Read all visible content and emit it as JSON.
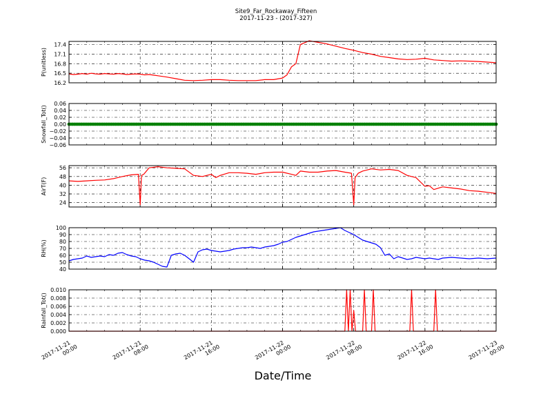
{
  "figure": {
    "title": "Site9_Far_Rockaway_Fifteen",
    "subtitle": "2017-11-23 - (2017-327)",
    "xlabel": "Date/Time"
  },
  "chart_data": [
    {
      "type": "line",
      "ylabel": "P(unitless)",
      "ylim": [
        16.2,
        17.5
      ],
      "yticks": [
        "16.2",
        "16.5",
        "16.8",
        "17.1",
        "17.4"
      ],
      "color": "#ff0000",
      "x_hours": [
        0,
        0.5,
        1,
        1.5,
        2,
        2.5,
        3,
        3.5,
        4,
        4.5,
        5,
        5.5,
        6,
        6.5,
        7,
        7.5,
        8,
        8.5,
        9,
        9.5,
        10,
        11,
        12,
        13,
        14,
        15,
        16,
        17,
        18,
        19,
        20,
        21,
        22,
        23,
        24,
        24.5,
        25,
        25.5,
        26,
        27,
        28,
        29,
        30,
        31,
        32,
        33,
        34,
        35,
        36,
        37,
        38,
        39,
        40,
        41,
        42,
        43,
        44,
        45,
        46,
        47,
        48
      ],
      "values": [
        16.48,
        16.46,
        16.47,
        16.49,
        16.47,
        16.5,
        16.48,
        16.47,
        16.49,
        16.48,
        16.47,
        16.49,
        16.48,
        16.46,
        16.47,
        16.48,
        16.47,
        16.45,
        16.46,
        16.44,
        16.42,
        16.38,
        16.33,
        16.28,
        16.27,
        16.28,
        16.3,
        16.3,
        16.28,
        16.27,
        16.27,
        16.27,
        16.3,
        16.3,
        16.35,
        16.45,
        16.7,
        16.8,
        17.4,
        17.52,
        17.47,
        17.42,
        17.35,
        17.28,
        17.22,
        17.15,
        17.1,
        17.03,
        16.99,
        16.95,
        16.93,
        16.94,
        16.97,
        16.92,
        16.9,
        16.88,
        16.89,
        16.88,
        16.87,
        16.85,
        16.83
      ]
    },
    {
      "type": "scatter",
      "ylabel": "Snowfall_Tot()",
      "ylim": [
        -0.06,
        0.06
      ],
      "yticks": [
        "−0.06",
        "−0.04",
        "−0.02",
        "0.00",
        "0.02",
        "0.04",
        "0.06"
      ],
      "color": "#008000",
      "x_hours": [
        0,
        48
      ],
      "values": [
        0.0,
        0.0
      ]
    },
    {
      "type": "line",
      "ylabel": "AirT(F)",
      "ylim": [
        20,
        58
      ],
      "yticks": [
        "24",
        "32",
        "40",
        "48",
        "56"
      ],
      "color": "#ff0000",
      "x_hours": [
        0,
        1,
        2,
        3,
        4,
        5,
        6,
        7,
        7.8,
        8.0,
        8.15,
        8.4,
        9,
        10,
        11,
        12,
        13,
        14,
        15,
        16,
        16.5,
        17,
        18,
        19,
        20,
        21,
        22,
        23,
        24,
        25,
        25.5,
        26,
        27,
        28,
        29,
        30,
        31,
        31.75,
        32.0,
        32.15,
        32.5,
        33,
        34,
        35,
        36,
        37,
        38,
        39,
        40,
        40.5,
        41,
        42,
        43,
        44,
        45,
        46,
        47,
        48
      ],
      "values": [
        44,
        43.5,
        44,
        44.5,
        44.8,
        46,
        48,
        49.5,
        50,
        22,
        49,
        50,
        56,
        57,
        56,
        55.5,
        55,
        49,
        48,
        50,
        47,
        49,
        51.5,
        51.5,
        51,
        50,
        51.5,
        52,
        52,
        50,
        49,
        53,
        52,
        52,
        53,
        53.5,
        52,
        51,
        22,
        47,
        51,
        53,
        55,
        54,
        54.5,
        53.5,
        49,
        47,
        39,
        39.5,
        36,
        38.5,
        37.5,
        36.5,
        35,
        34.5,
        33.5,
        32.5
      ]
    },
    {
      "type": "line",
      "ylabel": "RH(%)",
      "ylim": [
        40,
        100
      ],
      "yticks": [
        "40",
        "50",
        "60",
        "70",
        "80",
        "90",
        "100"
      ],
      "color": "#0000ff",
      "x_hours": [
        0,
        0.5,
        1,
        1.5,
        2,
        2.5,
        3,
        3.5,
        4,
        4.5,
        5,
        5.5,
        6,
        6.5,
        7,
        7.5,
        8,
        8.5,
        9,
        9.5,
        10,
        10.5,
        11,
        11.5,
        12,
        12.5,
        13,
        13.5,
        14,
        14.5,
        15,
        15.5,
        16,
        16.5,
        17,
        17.5,
        18,
        18.5,
        19,
        19.5,
        20,
        20.5,
        21,
        21.5,
        22,
        22.5,
        23,
        23.5,
        24,
        24.5,
        25,
        25.5,
        26,
        26.5,
        27,
        27.5,
        28,
        28.5,
        29,
        29.5,
        30,
        30.5,
        31,
        31.5,
        32,
        32.5,
        33,
        33.5,
        34,
        34.5,
        35,
        35.5,
        36,
        36.5,
        37,
        37.5,
        38,
        38.5,
        39,
        39.5,
        40,
        40.5,
        41,
        41.5,
        42,
        43,
        44,
        45,
        46,
        47,
        48
      ],
      "values": [
        52,
        54,
        55,
        56,
        59,
        57,
        58,
        59,
        58,
        61,
        60,
        63,
        64,
        61,
        59,
        58,
        55,
        53,
        52,
        50,
        47,
        44,
        43,
        60,
        62,
        63,
        60,
        55,
        50,
        65,
        68,
        69,
        67,
        66,
        65,
        66,
        67,
        69,
        70,
        71,
        71,
        72,
        71,
        70,
        72,
        73,
        74,
        76,
        79,
        80,
        83,
        86,
        88,
        90,
        92,
        94,
        95,
        96,
        97,
        98,
        99,
        100,
        96,
        93,
        90,
        86,
        82,
        80,
        78,
        76,
        71,
        60,
        62,
        55,
        58,
        56,
        54,
        55,
        57,
        56,
        55,
        56,
        55,
        54,
        56,
        57,
        56,
        55,
        56,
        55,
        56
      ],
      "note": ""
    },
    {
      "type": "line",
      "ylabel": "Rainfall_Tot()",
      "ylim": [
        0,
        0.01
      ],
      "yticks": [
        "0.000",
        "0.002",
        "0.004",
        "0.006",
        "0.008",
        "0.010"
      ],
      "color": "#ff0000",
      "x_hours": [
        0,
        31.0,
        31.2,
        31.4,
        31.6,
        31.8,
        32.0,
        32.2,
        32.4,
        32.6,
        33.0,
        33.2,
        33.4,
        34.0,
        34.2,
        34.4,
        38.3,
        38.5,
        38.7,
        41.0,
        41.2,
        41.4,
        48
      ],
      "values": [
        0,
        0,
        0.01,
        0,
        0.01,
        0,
        0.005,
        0,
        0,
        0,
        0,
        0.01,
        0,
        0,
        0.01,
        0,
        0,
        0.01,
        0,
        0,
        0.01,
        0,
        0
      ]
    }
  ],
  "x_axis": {
    "range_hours": [
      0,
      48
    ],
    "tick_hours": [
      0,
      8,
      16,
      24,
      32,
      40,
      48
    ],
    "tick_labels": [
      [
        "2017-11-21",
        "00:00"
      ],
      [
        "2017-11-21",
        "08:00"
      ],
      [
        "2017-11-21",
        "16:00"
      ],
      [
        "2017-11-22",
        "00:00"
      ],
      [
        "2017-11-22",
        "08:00"
      ],
      [
        "2017-11-22",
        "16:00"
      ],
      [
        "2017-11-23",
        "00:00"
      ]
    ]
  }
}
